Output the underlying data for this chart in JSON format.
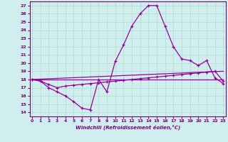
{
  "xlabel": "Windchill (Refroidissement éolien,°C)",
  "line_color": "#990099",
  "bg_color": "#d0eeee",
  "grid_color": "#aaddcc",
  "ylim": [
    13.5,
    27.5
  ],
  "xlim": [
    -0.3,
    23.3
  ],
  "yticks": [
    14,
    15,
    16,
    17,
    18,
    19,
    20,
    21,
    22,
    23,
    24,
    25,
    26,
    27
  ],
  "xticks": [
    0,
    1,
    2,
    3,
    4,
    5,
    6,
    7,
    8,
    9,
    10,
    11,
    12,
    13,
    14,
    15,
    16,
    17,
    18,
    19,
    20,
    21,
    22,
    23
  ],
  "curve1_x": [
    0,
    1,
    2,
    3,
    4,
    5,
    6,
    7,
    8,
    9,
    10,
    11,
    12,
    13,
    14,
    15,
    16,
    17,
    18,
    19,
    20,
    21,
    22,
    23
  ],
  "curve1_y": [
    18.0,
    17.8,
    17.0,
    16.5,
    16.0,
    15.3,
    14.5,
    14.3,
    18.0,
    16.5,
    20.2,
    22.2,
    24.5,
    26.0,
    27.0,
    27.0,
    24.5,
    22.0,
    20.5,
    20.3,
    19.7,
    20.3,
    18.2,
    17.5
  ],
  "curve2_x": [
    0,
    1,
    2,
    3,
    4,
    5,
    6,
    7,
    8,
    9,
    10,
    11,
    12,
    13,
    14,
    15,
    16,
    17,
    18,
    19,
    20,
    21,
    22,
    23
  ],
  "curve2_y": [
    18.0,
    17.8,
    17.4,
    17.0,
    17.2,
    17.3,
    17.4,
    17.5,
    17.6,
    17.7,
    17.8,
    17.9,
    18.0,
    18.1,
    18.2,
    18.3,
    18.4,
    18.5,
    18.6,
    18.7,
    18.8,
    18.9,
    19.0,
    17.8
  ],
  "curve3_x": [
    0,
    23
  ],
  "curve3_y": [
    18.0,
    19.0
  ],
  "curve4_x": [
    0,
    23
  ],
  "curve4_y": [
    18.0,
    18.0
  ]
}
